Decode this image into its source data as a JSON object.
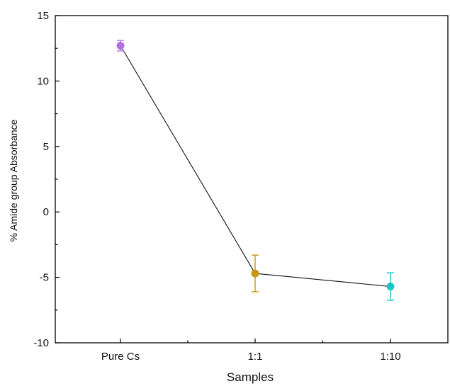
{
  "chart_data": {
    "type": "scatter",
    "title": "",
    "xlabel": "Samples",
    "ylabel": "% Amide group Absorbance",
    "categories": [
      "Pure Cs",
      "1:1",
      "1:10"
    ],
    "ylim": [
      -10,
      15
    ],
    "yticks": [
      -10,
      -5,
      0,
      5,
      10,
      15
    ],
    "connected_line": true,
    "grid": false,
    "points": [
      {
        "category": "Pure Cs",
        "y": 12.7,
        "err": 0.4,
        "color": "#b36fe0"
      },
      {
        "category": "1:1",
        "y": -4.7,
        "err": 1.4,
        "color": "#c9960f"
      },
      {
        "category": "1:10",
        "y": -5.7,
        "err": 1.05,
        "color": "#1fc4c4"
      }
    ]
  }
}
